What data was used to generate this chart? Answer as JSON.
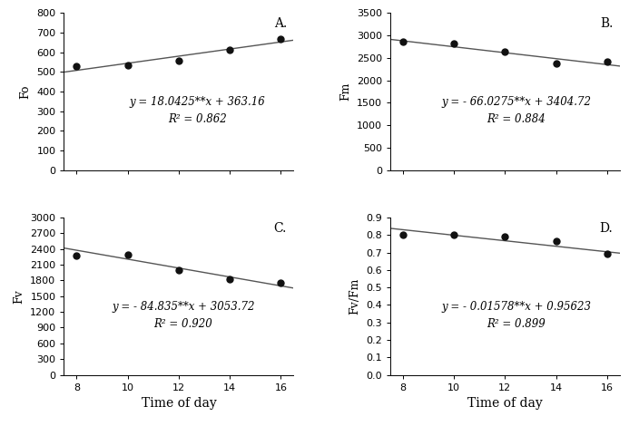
{
  "panels": [
    {
      "label": "A.",
      "ylabel": "Fo",
      "x": [
        8,
        10,
        12,
        14,
        16
      ],
      "y": [
        530,
        535,
        555,
        610,
        665
      ],
      "eq_line1": "y = 18.0425**x + 363.16",
      "eq_line2": "R² = 0.862",
      "slope": 18.0425,
      "intercept": 363.16,
      "ylim": [
        0,
        800
      ],
      "yticks": [
        0,
        100,
        200,
        300,
        400,
        500,
        600,
        700,
        800
      ],
      "eq_xf": 0.58,
      "eq_yf": 0.38
    },
    {
      "label": "B.",
      "ylabel": "Fm",
      "x": [
        8,
        10,
        12,
        14,
        16
      ],
      "y": [
        2850,
        2820,
        2630,
        2370,
        2420
      ],
      "eq_line1": "y = - 66.0275**x + 3404.72",
      "eq_line2": "R² = 0.884",
      "slope": -66.0275,
      "intercept": 3404.72,
      "ylim": [
        0,
        3500
      ],
      "yticks": [
        0,
        500,
        1000,
        1500,
        2000,
        2500,
        3000,
        3500
      ],
      "eq_xf": 0.55,
      "eq_yf": 0.38
    },
    {
      "label": "C.",
      "ylabel": "Fv",
      "x": [
        8,
        10,
        12,
        14,
        16
      ],
      "y": [
        2280,
        2290,
        2000,
        1820,
        1760
      ],
      "eq_line1": "y = - 84.835**x + 3053.72",
      "eq_line2": "R² = 0.920",
      "slope": -84.835,
      "intercept": 3053.72,
      "ylim": [
        0,
        3000
      ],
      "yticks": [
        0,
        300,
        600,
        900,
        1200,
        1500,
        1800,
        2100,
        2400,
        2700,
        3000
      ],
      "eq_xf": 0.52,
      "eq_yf": 0.38
    },
    {
      "label": "D.",
      "ylabel": "Fv/Fm",
      "x": [
        8,
        10,
        12,
        14,
        16
      ],
      "y": [
        0.8,
        0.8,
        0.79,
        0.765,
        0.69
      ],
      "eq_line1": "y = - 0.01578**x + 0.95623",
      "eq_line2": "R² = 0.899",
      "slope": -0.01578,
      "intercept": 0.95623,
      "ylim": [
        0,
        0.9
      ],
      "yticks": [
        0.0,
        0.1,
        0.2,
        0.3,
        0.4,
        0.5,
        0.6,
        0.7,
        0.8,
        0.9
      ],
      "eq_xf": 0.55,
      "eq_yf": 0.38
    }
  ],
  "xlabel": "Time of day",
  "markersize": 5,
  "markercolor": "#111111",
  "linecolor": "#555555",
  "linewidth": 1.0,
  "tick_fontsize": 8,
  "label_fontsize": 10,
  "ylabel_fontsize": 9,
  "eq_fontsize": 8.5,
  "panel_label_fontsize": 10,
  "xticks": [
    8,
    10,
    12,
    14,
    16
  ]
}
